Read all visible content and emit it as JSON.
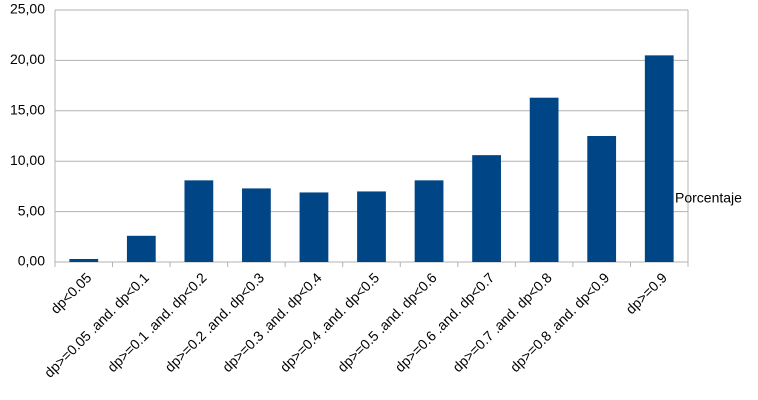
{
  "chart_data": {
    "type": "bar",
    "categories": [
      "dp<0.05",
      "dp>=0.05 .and. dp<0.1",
      "dp>=0.1 .and. dp<0.2",
      "dp>=0.2 .and. dp<0.3",
      "dp>=0.3 .and. dp<0.4",
      "dp>=0.4 .and. dp<0.5",
      "dp>=0.5 .and. dp<0.6",
      "dp>=0.6 .and. dp<0.7",
      "dp>=0.7 .and. dp<0.8",
      "dp>=0.8 .and. dp<0.9",
      "dp>=0.9"
    ],
    "series": [
      {
        "name": "Porcentaje",
        "color": "#004586",
        "values": [
          0.3,
          2.6,
          8.1,
          7.3,
          6.9,
          7.0,
          8.1,
          10.6,
          16.3,
          12.5,
          20.5
        ]
      }
    ],
    "ylim": [
      0,
      25
    ],
    "yticks": [
      {
        "value": 0,
        "label": "0,00"
      },
      {
        "value": 5,
        "label": "5,00"
      },
      {
        "value": 10,
        "label": "10,00"
      },
      {
        "value": 15,
        "label": "15,00"
      },
      {
        "value": 20,
        "label": "20,00"
      },
      {
        "value": 25,
        "label": "25,00"
      }
    ],
    "grid": true
  }
}
